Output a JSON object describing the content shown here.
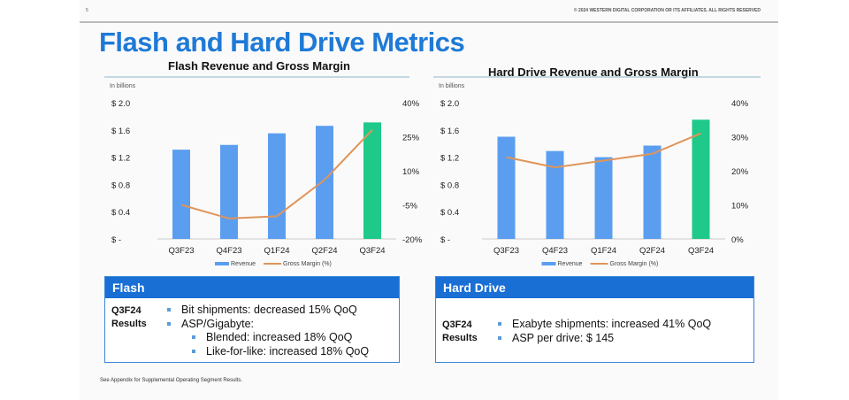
{
  "header": {
    "page_number": "5",
    "copyright": "© 2024 WESTERN DIGITAL CORPORATION OR ITS AFFILIATES. ALL RIGHTS RESERVED",
    "title": "Flash and Hard Drive Metrics"
  },
  "colors": {
    "bar": "#5b9ef0",
    "bar_highlight": "#1fc98a",
    "line": "#e0955a",
    "title": "#1e7ad6",
    "box_header": "#1a6fd4"
  },
  "chart_data": [
    {
      "type": "bar",
      "title": "Flash Revenue and Gross Margin",
      "unit_label": "In billions",
      "categories": [
        "Q3F23",
        "Q4F23",
        "Q1F24",
        "Q2F24",
        "Q3F24"
      ],
      "series": [
        {
          "name": "Revenue",
          "type": "bar",
          "axis": "left",
          "values": [
            1.31,
            1.38,
            1.55,
            1.66,
            1.71
          ]
        },
        {
          "name": "Gross Margin (%)",
          "type": "line",
          "axis": "right",
          "values": [
            -5,
            -11,
            -10,
            6,
            28
          ]
        }
      ],
      "ylim": [
        0,
        2.0
      ],
      "yticks": [
        "$ -",
        "$ 0.4",
        "$ 0.8",
        "$ 1.2",
        "$ 1.6",
        "$ 2.0"
      ],
      "y2lim": [
        -20,
        40
      ],
      "y2ticks": [
        "-20%",
        "-5%",
        "10%",
        "25%",
        "40%"
      ],
      "legend": "bottom"
    },
    {
      "type": "bar",
      "title": "Hard Drive Revenue and Gross Margin",
      "unit_label": "In billions",
      "categories": [
        "Q3F23",
        "Q4F23",
        "Q1F24",
        "Q2F24",
        "Q3F24"
      ],
      "series": [
        {
          "name": "Revenue",
          "type": "bar",
          "axis": "left",
          "values": [
            1.5,
            1.29,
            1.2,
            1.37,
            1.75
          ]
        },
        {
          "name": "Gross Margin (%)",
          "type": "line",
          "axis": "right",
          "values": [
            24,
            21,
            23,
            25,
            31
          ]
        }
      ],
      "ylim": [
        0,
        2.0
      ],
      "yticks": [
        "$ -",
        "$ 0.4",
        "$ 0.8",
        "$ 1.2",
        "$ 1.6",
        "$ 2.0"
      ],
      "y2lim": [
        0,
        40
      ],
      "y2ticks": [
        "0%",
        "10%",
        "20%",
        "30%",
        "40%"
      ],
      "legend": "bottom"
    }
  ],
  "flash": {
    "header": "Flash",
    "label1": "Q3F24",
    "label2": "Results",
    "items": [
      "Bit shipments: decreased 15% QoQ",
      "ASP/Gigabyte:",
      "Blended: increased 18% QoQ",
      "Like-for-like: increased 18% QoQ"
    ]
  },
  "hdd": {
    "header": "Hard Drive",
    "label1": "Q3F24",
    "label2": "Results",
    "items": [
      "Exabyte shipments: increased 41% QoQ",
      "ASP per drive: $ 145"
    ]
  },
  "footnote": "See Appendix for Supplemental Operating Segment Results."
}
